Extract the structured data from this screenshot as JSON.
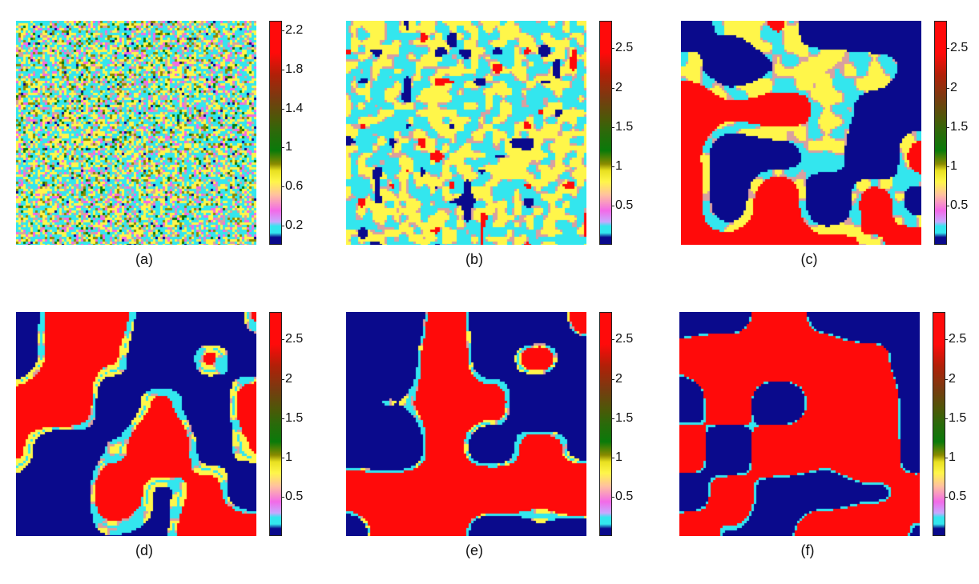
{
  "panels": [
    {
      "id": "a",
      "caption": "(a)",
      "style": "noise",
      "scale_max": 2.3,
      "ticks": [
        "2.2",
        "1.8",
        "1.4",
        "1",
        "0.6",
        "0.2"
      ],
      "tick_values": [
        2.2,
        1.8,
        1.4,
        1.0,
        0.6,
        0.2
      ]
    },
    {
      "id": "b",
      "caption": "(b)",
      "style": "early",
      "scale_max": 2.85,
      "ticks": [
        "2.5",
        "2",
        "1.5",
        "1",
        "0.5"
      ],
      "tick_values": [
        2.5,
        2.0,
        1.5,
        1.0,
        0.5
      ]
    },
    {
      "id": "c",
      "caption": "(c)",
      "style": "mid",
      "scale_max": 2.85,
      "ticks": [
        "2.5",
        "2",
        "1.5",
        "1",
        "0.5"
      ],
      "tick_values": [
        2.5,
        2.0,
        1.5,
        1.0,
        0.5
      ]
    },
    {
      "id": "d",
      "caption": "(d)",
      "style": "late",
      "scale_max": 2.85,
      "ticks": [
        "2.5",
        "2",
        "1.5",
        "1",
        "0.5"
      ],
      "tick_values": [
        2.5,
        2.0,
        1.5,
        1.0,
        0.5
      ]
    },
    {
      "id": "e",
      "caption": "(e)",
      "style": "later",
      "scale_max": 2.85,
      "ticks": [
        "2.5",
        "2",
        "1.5",
        "1",
        "0.5"
      ],
      "tick_values": [
        2.5,
        2.0,
        1.5,
        1.0,
        0.5
      ]
    },
    {
      "id": "f",
      "caption": "(f)",
      "style": "final",
      "scale_max": 2.85,
      "ticks": [
        "2.5",
        "2",
        "1.5",
        "1",
        "0.5"
      ],
      "tick_values": [
        2.5,
        2.0,
        1.5,
        1.0,
        0.5
      ]
    }
  ],
  "colors": {
    "dark_blue": "#0a0a8c",
    "cyan": "#33e6ee",
    "magenta": "#f26ae8",
    "yellow": "#fff64a",
    "olive": "#8a8a00",
    "green": "#0a7a0a",
    "brown": "#7a3a10",
    "red": "#ff0a0a",
    "interface": "#d8a0a0"
  }
}
